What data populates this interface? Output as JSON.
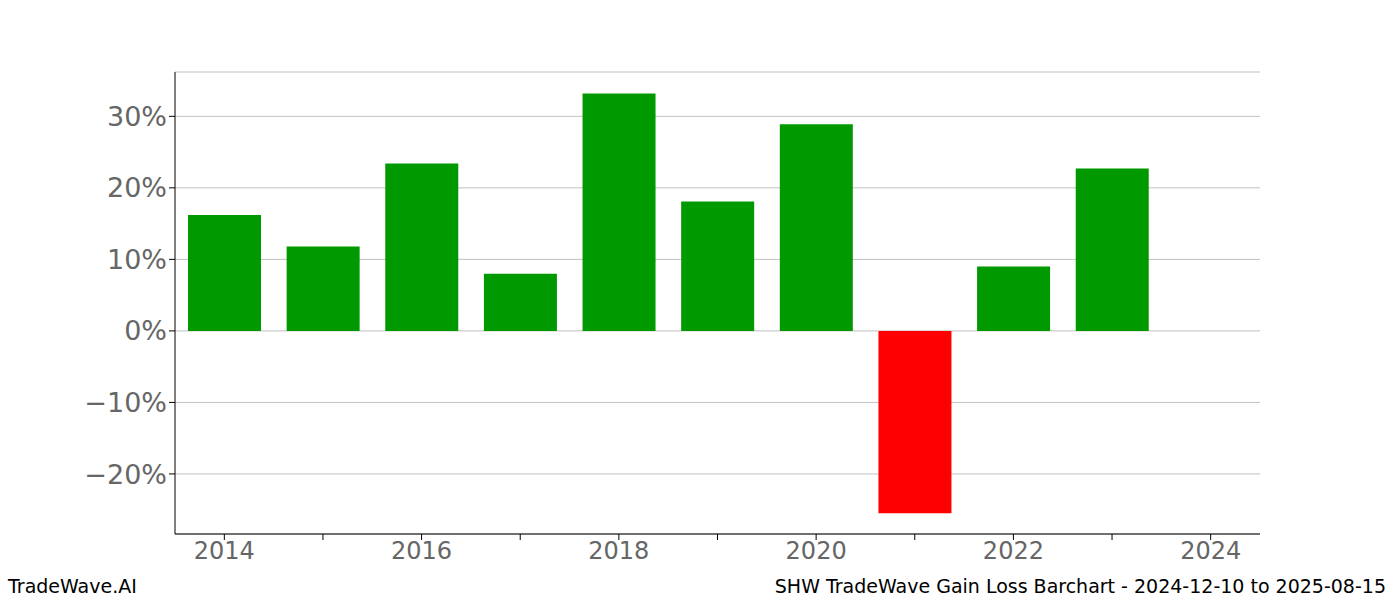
{
  "chart_data": {
    "type": "bar",
    "categories": [
      "2014",
      null,
      "2016",
      null,
      "2018",
      null,
      "2020",
      null,
      "2022",
      null,
      "2024"
    ],
    "values": [
      16.2,
      11.8,
      23.4,
      8.0,
      33.2,
      18.1,
      28.9,
      -25.5,
      9.0,
      22.7,
      null
    ],
    "colors": [
      "#009900",
      "#009900",
      "#009900",
      "#009900",
      "#009900",
      "#009900",
      "#009900",
      "#ff0000",
      "#009900",
      "#009900",
      null
    ],
    "ylim": [
      -28.4,
      36.2
    ],
    "yticks": [
      {
        "value": -20,
        "label": "−20%"
      },
      {
        "value": -10,
        "label": "−10%"
      },
      {
        "value": 0,
        "label": "0%"
      },
      {
        "value": 10,
        "label": "10%"
      },
      {
        "value": 20,
        "label": "20%"
      },
      {
        "value": 30,
        "label": "30%"
      }
    ],
    "grid": true,
    "annotations": [
      "TradeWave.AI",
      "SHW TradeWave Gain Loss Barchart - 2024-12-10 to 2025-08-15"
    ]
  }
}
